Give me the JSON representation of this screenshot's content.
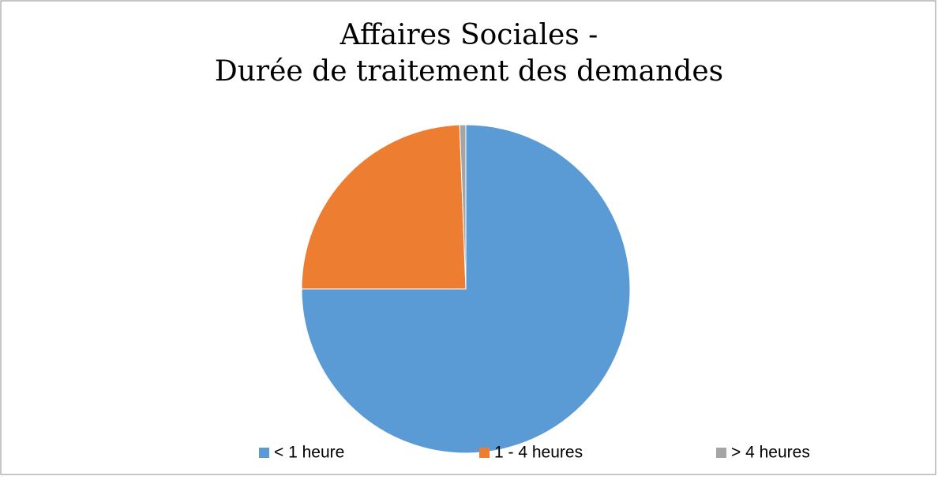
{
  "chart_data": {
    "type": "pie",
    "title": [
      "Affaires Sociales -",
      "Durée de traitement des demandes"
    ],
    "categories": [
      "< 1 heure",
      "1 - 4 heures",
      "> 4 heures"
    ],
    "values": [
      75,
      24.4,
      0.6
    ],
    "colors": [
      "#5b9bd5",
      "#ed7d31",
      "#a5a5a5"
    ],
    "legend": "bottom"
  }
}
